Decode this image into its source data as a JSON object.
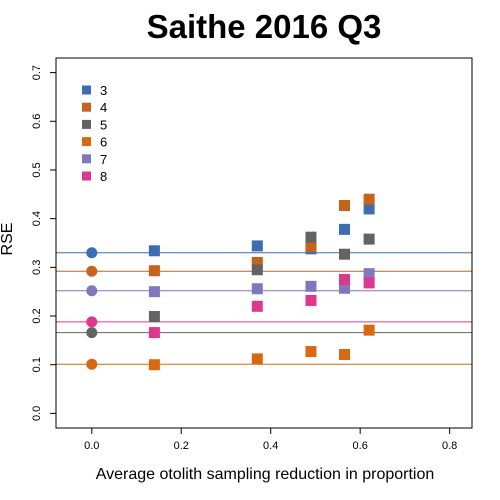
{
  "chart_data": {
    "type": "scatter",
    "title": "Saithe 2016 Q3",
    "xlabel": "Average otolith sampling reduction in proportion",
    "ylabel": "RSE",
    "xlim": [
      -0.08,
      0.85
    ],
    "ylim": [
      -0.03,
      0.73
    ],
    "x_ticks": [
      0.0,
      0.2,
      0.4,
      0.6,
      0.8
    ],
    "x_tick_labels": [
      "0.0",
      "0.2",
      "0.4",
      "0.6",
      "0.8"
    ],
    "y_ticks": [
      0.0,
      0.1,
      0.2,
      0.3,
      0.4,
      0.5,
      0.6,
      0.7
    ],
    "y_tick_labels": [
      "0.0",
      "0.1",
      "0.2",
      "0.3",
      "0.4",
      "0.5",
      "0.6",
      "0.7"
    ],
    "grid": false,
    "legend_position": "top-left",
    "baseline_marker": "circle",
    "point_marker": "square",
    "series": [
      {
        "name": "3",
        "color": "#3A6DB3",
        "points": [
          [
            0.0,
            0.33
          ],
          [
            0.14,
            0.334
          ],
          [
            0.37,
            0.344
          ],
          [
            0.49,
            0.338
          ],
          [
            0.565,
            0.378
          ],
          [
            0.62,
            0.42
          ]
        ],
        "reference_line": 0.33
      },
      {
        "name": "4",
        "color": "#C6621A",
        "points": [
          [
            0.0,
            0.292
          ],
          [
            0.14,
            0.293
          ],
          [
            0.37,
            0.31
          ],
          [
            0.49,
            0.343
          ],
          [
            0.565,
            0.427
          ],
          [
            0.62,
            0.44
          ]
        ],
        "reference_line": 0.292
      },
      {
        "name": "5",
        "color": "#636363",
        "points": [
          [
            0.0,
            0.166
          ],
          [
            0.14,
            0.199
          ],
          [
            0.37,
            0.295
          ],
          [
            0.49,
            0.362
          ],
          [
            0.565,
            0.327
          ],
          [
            0.62,
            0.358
          ]
        ],
        "reference_line": 0.166
      },
      {
        "name": "6",
        "color": "#D9690F",
        "points": [
          [
            0.0,
            0.101
          ],
          [
            0.14,
            0.1
          ],
          [
            0.37,
            0.112
          ],
          [
            0.49,
            0.127
          ],
          [
            0.565,
            0.121
          ],
          [
            0.62,
            0.171
          ]
        ],
        "reference_line": 0.101
      },
      {
        "name": "7",
        "color": "#7F78C0",
        "points": [
          [
            0.0,
            0.252
          ],
          [
            0.14,
            0.25
          ],
          [
            0.37,
            0.256
          ],
          [
            0.49,
            0.261
          ],
          [
            0.565,
            0.257
          ],
          [
            0.62,
            0.287
          ]
        ],
        "reference_line": 0.252
      },
      {
        "name": "8",
        "color": "#E0368E",
        "points": [
          [
            0.0,
            0.188
          ],
          [
            0.14,
            0.166
          ],
          [
            0.37,
            0.22
          ],
          [
            0.49,
            0.232
          ],
          [
            0.565,
            0.275
          ],
          [
            0.62,
            0.268
          ]
        ],
        "reference_line": 0.188
      }
    ]
  }
}
